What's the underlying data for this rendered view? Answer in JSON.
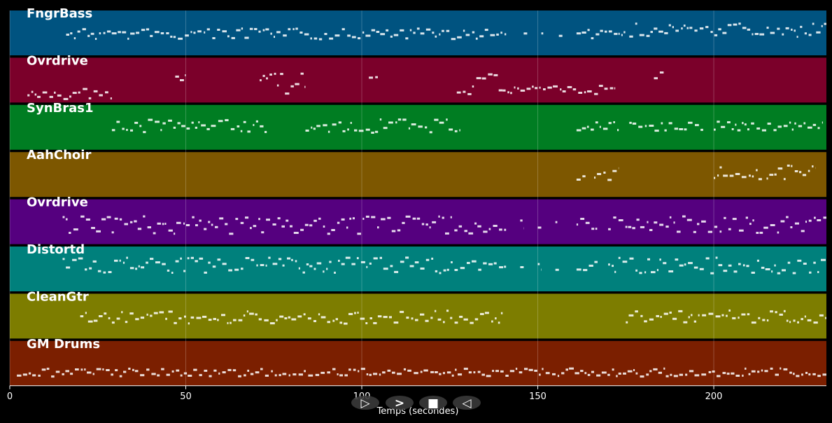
{
  "chart_data": {
    "type": "piano-roll",
    "xlabel": "Temps (secondes)",
    "xlim": [
      0,
      232
    ],
    "xticks": [
      0,
      50,
      100,
      150,
      200
    ],
    "grid": true,
    "tracks": [
      {
        "name": "FngrBass",
        "color": "#005380",
        "segments": [
          [
            16,
            141,
            0.5,
            0.25
          ],
          [
            146,
            147,
            0.5,
            0.1
          ],
          [
            151,
            152,
            0.5,
            0.1
          ],
          [
            156,
            157,
            0.5,
            0.1
          ],
          [
            161,
            175,
            0.5,
            0.2
          ],
          [
            176,
            232,
            0.58,
            0.3
          ]
        ]
      },
      {
        "name": "Ovrdrive",
        "color": "#7b002a",
        "segments": [
          [
            5,
            29,
            0.2,
            0.25
          ],
          [
            47,
            50,
            0.62,
            0.2
          ],
          [
            71,
            84,
            0.45,
            0.5
          ],
          [
            102,
            105,
            0.62,
            0.2
          ],
          [
            127,
            140,
            0.45,
            0.5
          ],
          [
            140,
            172,
            0.3,
            0.2
          ],
          [
            183,
            186,
            0.62,
            0.2
          ]
        ]
      },
      {
        "name": "SynBras1",
        "color": "#007d22",
        "segments": [
          [
            29,
            73,
            0.55,
            0.3
          ],
          [
            84,
            128,
            0.55,
            0.3
          ],
          [
            161,
            173,
            0.55,
            0.2
          ],
          [
            176,
            197,
            0.55,
            0.25
          ],
          [
            200,
            231,
            0.55,
            0.2
          ]
        ]
      },
      {
        "name": "AahChoir",
        "color": "#7d5700",
        "segments": [
          [
            161,
            164,
            0.55,
            0.3
          ],
          [
            166,
            173,
            0.55,
            0.35
          ],
          [
            200,
            214,
            0.55,
            0.35
          ],
          [
            215,
            229,
            0.55,
            0.35
          ]
        ]
      },
      {
        "name": "Ovrdrive",
        "color": "#55007f",
        "segments": [
          [
            15,
            141,
            0.45,
            0.4
          ],
          [
            145,
            146,
            0.45,
            0.2
          ],
          [
            150,
            151,
            0.45,
            0.2
          ],
          [
            155,
            156,
            0.45,
            0.2
          ],
          [
            161,
            167,
            0.45,
            0.3
          ],
          [
            170,
            232,
            0.45,
            0.4
          ]
        ]
      },
      {
        "name": "Distortd",
        "color": "#00807c",
        "segments": [
          [
            15,
            141,
            0.6,
            0.35
          ],
          [
            145,
            146,
            0.6,
            0.2
          ],
          [
            150,
            151,
            0.6,
            0.2
          ],
          [
            155,
            156,
            0.6,
            0.2
          ],
          [
            161,
            167,
            0.6,
            0.3
          ],
          [
            170,
            232,
            0.6,
            0.35
          ]
        ]
      },
      {
        "name": "CleanGtr",
        "color": "#7d7d00",
        "segments": [
          [
            20,
            140,
            0.5,
            0.3
          ],
          [
            175,
            232,
            0.5,
            0.3
          ]
        ]
      },
      {
        "name": "GM Drums",
        "color": "#7b1f00",
        "segments": [
          [
            2,
            232,
            0.32,
            0.18
          ]
        ]
      }
    ]
  },
  "controls": [
    {
      "icon": "play-outline-icon",
      "glyph": "▷"
    },
    {
      "icon": "forward-icon",
      "glyph": ">"
    },
    {
      "icon": "stop-icon",
      "glyph": "■"
    },
    {
      "icon": "rewind-icon",
      "glyph": "◁"
    }
  ]
}
